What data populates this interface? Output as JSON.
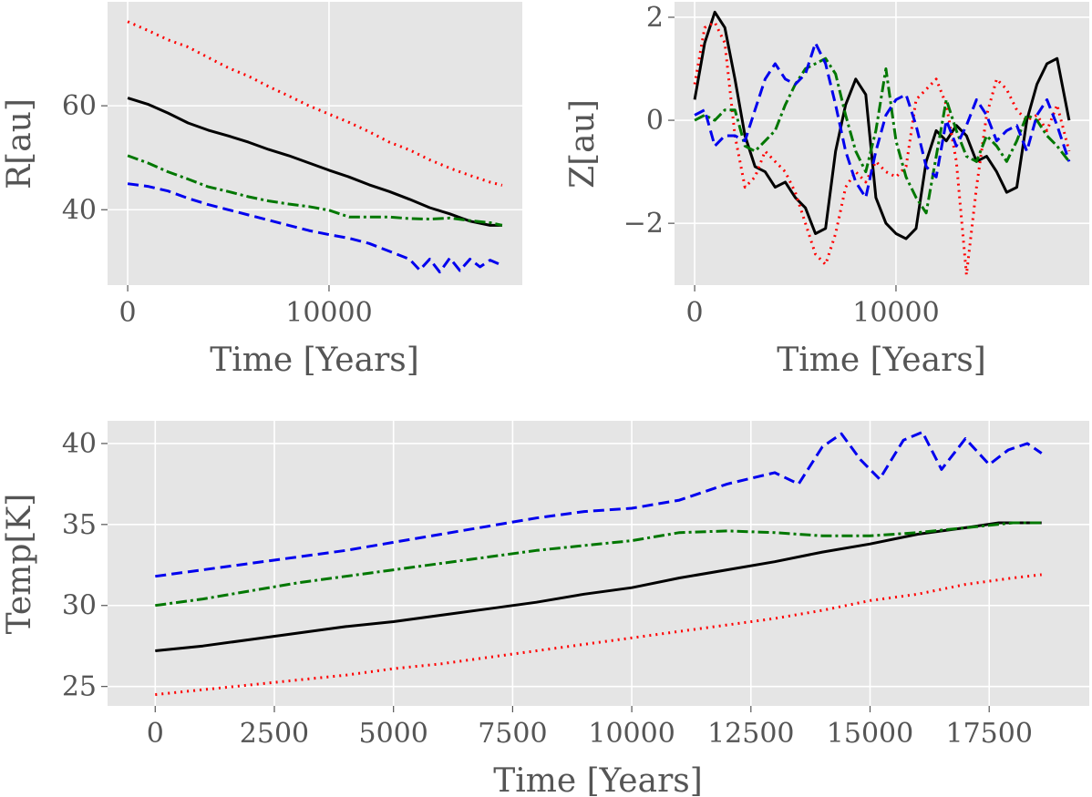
{
  "chart_data": [
    {
      "type": "line",
      "id": "r",
      "xlabel": "Time [Years]",
      "ylabel": "R[au]",
      "xlim": [
        -1000,
        19600
      ],
      "ylim": [
        25.5,
        80
      ],
      "xticks": [
        0,
        10000
      ],
      "yticks": [
        40,
        60
      ],
      "xtick_labels": [
        "0",
        "10000"
      ],
      "ytick_labels": [
        "40",
        "60"
      ],
      "grid": true,
      "series": [
        {
          "name": "black",
          "color": "#000000",
          "dash": "",
          "x": [
            0,
            1000,
            2000,
            3000,
            4000,
            5000,
            6000,
            7000,
            8000,
            9000,
            10000,
            11000,
            12000,
            13000,
            14000,
            15000,
            16000,
            17000,
            18000,
            18600
          ],
          "y": [
            61.5,
            60.3,
            58.6,
            56.7,
            55.3,
            54.2,
            53.0,
            51.6,
            50.4,
            49.0,
            47.6,
            46.3,
            44.8,
            43.5,
            42.0,
            40.4,
            39.2,
            37.8,
            37.0,
            37.0
          ]
        },
        {
          "name": "red",
          "color": "#ff0000",
          "dash": "2,5",
          "x": [
            0,
            1000,
            2000,
            3000,
            4000,
            5000,
            6000,
            7000,
            8000,
            9000,
            10000,
            11000,
            12000,
            13000,
            14000,
            15000,
            16000,
            17000,
            18000,
            18600
          ],
          "y": [
            76.2,
            74.5,
            72.7,
            71.3,
            69.3,
            67.3,
            65.7,
            63.7,
            61.9,
            60.0,
            58.4,
            56.8,
            55.0,
            53.0,
            51.5,
            49.6,
            48.0,
            46.6,
            45.3,
            44.7
          ]
        },
        {
          "name": "green",
          "color": "#007700",
          "dash": "12,4,3,4",
          "x": [
            0,
            1000,
            2000,
            3000,
            4000,
            5000,
            6000,
            7000,
            8000,
            9000,
            10000,
            11000,
            12000,
            13000,
            14000,
            15000,
            16000,
            17000,
            18000,
            18600
          ],
          "y": [
            50.4,
            49.0,
            47.3,
            45.9,
            44.4,
            43.5,
            42.5,
            41.7,
            41.1,
            40.6,
            39.9,
            38.6,
            38.6,
            38.6,
            38.3,
            38.2,
            38.4,
            37.9,
            37.5,
            37.0
          ]
        },
        {
          "name": "blue",
          "color": "#0000ee",
          "dash": "12,6",
          "x": [
            0,
            1000,
            2000,
            3000,
            4000,
            5000,
            6000,
            7000,
            8000,
            9000,
            10000,
            11000,
            12000,
            13000,
            14000,
            14500,
            15000,
            15500,
            16000,
            16500,
            17000,
            17500,
            18000,
            18600
          ],
          "y": [
            45.0,
            44.5,
            43.6,
            42.2,
            41.0,
            40.0,
            39.0,
            38.0,
            37.0,
            36.0,
            35.2,
            34.5,
            33.5,
            32.0,
            30.5,
            28.4,
            30.5,
            28.0,
            30.7,
            28.3,
            30.5,
            29.0,
            30.3,
            29.3
          ]
        }
      ]
    },
    {
      "type": "line",
      "id": "z",
      "xlabel": "Time [Years]",
      "ylabel": "Z[au]",
      "xlim": [
        -1000,
        19600
      ],
      "ylim": [
        -3.2,
        2.3
      ],
      "xticks": [
        0,
        10000
      ],
      "yticks": [
        -2,
        0,
        2
      ],
      "xtick_labels": [
        "0",
        "10000"
      ],
      "ytick_labels": [
        "−2",
        "0",
        "2"
      ],
      "grid": true,
      "series": [
        {
          "name": "black",
          "color": "#000000",
          "dash": "",
          "x": [
            0,
            500,
            1000,
            1500,
            2000,
            2500,
            3000,
            3500,
            4000,
            4500,
            5000,
            5500,
            6000,
            6500,
            7000,
            7500,
            8000,
            8500,
            9000,
            9500,
            10000,
            10500,
            11000,
            11500,
            12000,
            12500,
            13000,
            13500,
            14000,
            14500,
            15000,
            15500,
            16000,
            16500,
            17000,
            17500,
            18000,
            18600
          ],
          "y": [
            0.4,
            1.5,
            2.1,
            1.8,
            0.8,
            -0.3,
            -0.9,
            -1.0,
            -1.3,
            -1.2,
            -1.5,
            -1.7,
            -2.2,
            -2.1,
            -0.6,
            0.3,
            0.8,
            0.5,
            -1.5,
            -2.0,
            -2.2,
            -2.3,
            -2.1,
            -0.8,
            -0.2,
            -0.4,
            -0.1,
            -0.3,
            -0.8,
            -0.7,
            -1.0,
            -1.4,
            -1.3,
            0.0,
            0.7,
            1.1,
            1.2,
            0.0
          ]
        },
        {
          "name": "red",
          "color": "#ff0000",
          "dash": "2,5",
          "x": [
            0,
            500,
            1000,
            1500,
            2000,
            2500,
            3000,
            3500,
            4000,
            4500,
            5000,
            5500,
            6000,
            6500,
            7000,
            7500,
            8000,
            8500,
            9000,
            9500,
            10000,
            10500,
            11000,
            11500,
            12000,
            12500,
            13000,
            13500,
            14000,
            14500,
            15000,
            15500,
            16000,
            16500,
            17000,
            17500,
            18000,
            18600
          ],
          "y": [
            0.7,
            1.8,
            1.9,
            1.5,
            -0.3,
            -1.3,
            -1.1,
            -0.6,
            -0.8,
            -1.0,
            -1.4,
            -2.0,
            -2.6,
            -2.8,
            -2.2,
            -1.3,
            -1.0,
            -1.2,
            -0.8,
            -1.0,
            -1.1,
            -0.9,
            0.4,
            0.6,
            0.8,
            0.3,
            -0.8,
            -3.0,
            -1.3,
            0.1,
            0.8,
            0.6,
            0.2,
            0.0,
            0.1,
            -0.2,
            0.3,
            -0.6
          ]
        },
        {
          "name": "green",
          "color": "#007700",
          "dash": "12,4,3,4",
          "x": [
            0,
            500,
            1000,
            1500,
            2000,
            2500,
            3000,
            3500,
            4000,
            4500,
            5000,
            5500,
            6000,
            6500,
            7000,
            7500,
            8000,
            8500,
            9000,
            9500,
            10000,
            10500,
            11000,
            11500,
            12000,
            12500,
            13000,
            13500,
            14000,
            14500,
            15000,
            15500,
            16000,
            16500,
            17000,
            17500,
            18000,
            18600
          ],
          "y": [
            0.0,
            0.1,
            0.0,
            0.2,
            0.2,
            -0.5,
            -0.6,
            -0.4,
            -0.2,
            0.3,
            0.7,
            1.0,
            1.1,
            1.2,
            0.9,
            0.1,
            -0.6,
            -1.0,
            -0.2,
            1.0,
            -0.4,
            -1.1,
            -1.5,
            -1.8,
            -0.7,
            0.4,
            -0.2,
            -0.7,
            -0.8,
            -0.3,
            -0.5,
            -0.8,
            -0.4,
            0.1,
            0.0,
            -0.3,
            -0.5,
            -0.8
          ]
        },
        {
          "name": "blue",
          "color": "#0000ee",
          "dash": "12,6",
          "x": [
            0,
            500,
            1000,
            1500,
            2000,
            2500,
            3000,
            3500,
            4000,
            4500,
            5000,
            5500,
            6000,
            6500,
            7000,
            7500,
            8000,
            8500,
            9000,
            9500,
            10000,
            10500,
            11000,
            11500,
            12000,
            12500,
            13000,
            13500,
            14000,
            14500,
            15000,
            15500,
            16000,
            16500,
            17000,
            17500,
            18000,
            18600
          ],
          "y": [
            0.1,
            0.2,
            -0.5,
            -0.3,
            -0.3,
            -0.4,
            0.2,
            0.8,
            1.1,
            0.8,
            0.7,
            0.9,
            1.5,
            1.1,
            0.3,
            -0.6,
            -1.2,
            -1.5,
            -0.6,
            0.1,
            0.4,
            0.5,
            -0.1,
            -0.9,
            -1.1,
            0.0,
            -0.5,
            -0.1,
            0.4,
            0.1,
            -0.4,
            -0.2,
            -0.1,
            -0.6,
            0.1,
            0.4,
            -0.1,
            -0.8
          ]
        }
      ]
    },
    {
      "type": "line",
      "id": "temp",
      "xlabel": "Time [Years]",
      "ylabel": "Temp[K]",
      "xlim": [
        -1000,
        19600
      ],
      "ylim": [
        23.8,
        41.4
      ],
      "xticks": [
        0,
        2500,
        5000,
        7500,
        10000,
        12500,
        15000,
        17500
      ],
      "yticks": [
        25,
        30,
        35,
        40
      ],
      "xtick_labels": [
        "0",
        "2500",
        "5000",
        "7500",
        "10000",
        "12500",
        "15000",
        "17500"
      ],
      "ytick_labels": [
        "25",
        "30",
        "35",
        "40"
      ],
      "grid": true,
      "series": [
        {
          "name": "black",
          "color": "#000000",
          "dash": "",
          "x": [
            0,
            1000,
            2000,
            3000,
            4000,
            5000,
            6000,
            7000,
            8000,
            9000,
            10000,
            11000,
            12000,
            13000,
            14000,
            15000,
            16000,
            17000,
            17700,
            18600
          ],
          "y": [
            27.2,
            27.5,
            27.9,
            28.3,
            28.7,
            29.0,
            29.4,
            29.8,
            30.2,
            30.7,
            31.1,
            31.7,
            32.2,
            32.7,
            33.3,
            33.8,
            34.4,
            34.8,
            35.1,
            35.1
          ]
        },
        {
          "name": "red",
          "color": "#ff0000",
          "dash": "2,5",
          "x": [
            0,
            1000,
            2000,
            3000,
            4000,
            5000,
            6000,
            7000,
            8000,
            9000,
            10000,
            11000,
            12000,
            13000,
            14000,
            15000,
            16000,
            17000,
            18000,
            18600
          ],
          "y": [
            24.5,
            24.8,
            25.1,
            25.4,
            25.7,
            26.1,
            26.4,
            26.8,
            27.2,
            27.6,
            28.0,
            28.4,
            28.8,
            29.2,
            29.7,
            30.3,
            30.7,
            31.3,
            31.7,
            31.9
          ]
        },
        {
          "name": "green",
          "color": "#007700",
          "dash": "12,4,3,4",
          "x": [
            0,
            1000,
            2000,
            3000,
            4000,
            5000,
            6000,
            7000,
            8000,
            9000,
            10000,
            11000,
            12000,
            13000,
            14000,
            15000,
            16000,
            17000,
            18000,
            18600
          ],
          "y": [
            30.0,
            30.4,
            30.9,
            31.4,
            31.8,
            32.2,
            32.6,
            33.0,
            33.4,
            33.7,
            34.0,
            34.5,
            34.6,
            34.5,
            34.3,
            34.3,
            34.5,
            34.8,
            35.1,
            35.1
          ]
        },
        {
          "name": "blue",
          "color": "#0000ee",
          "dash": "12,6",
          "x": [
            0,
            1000,
            2000,
            3000,
            4000,
            5000,
            6000,
            7000,
            8000,
            9000,
            10000,
            11000,
            12000,
            13000,
            13500,
            14000,
            14400,
            14800,
            15200,
            15700,
            16100,
            16500,
            17000,
            17500,
            17900,
            18300,
            18600
          ],
          "y": [
            31.8,
            32.2,
            32.6,
            33.0,
            33.4,
            33.9,
            34.4,
            34.9,
            35.4,
            35.8,
            36.0,
            36.5,
            37.5,
            38.2,
            37.5,
            39.8,
            40.6,
            39.0,
            37.8,
            40.2,
            40.7,
            38.4,
            40.3,
            38.7,
            39.6,
            40.0,
            39.4
          ]
        }
      ]
    }
  ]
}
